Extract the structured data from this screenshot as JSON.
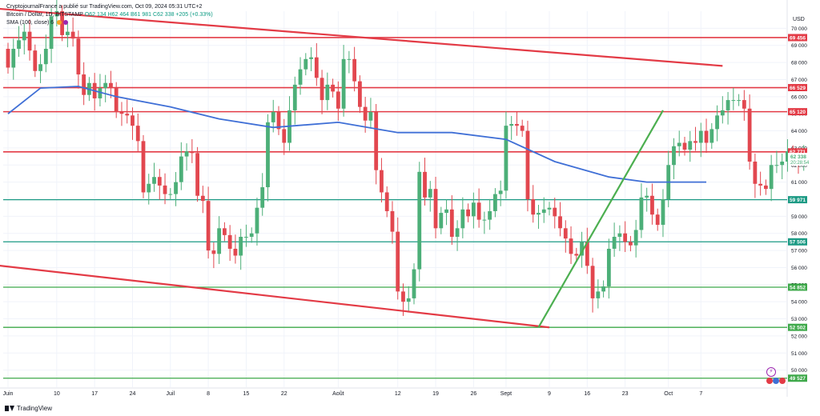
{
  "header": {
    "attribution": "CryptojournalFrance a publié sur TradingView.com, Oct 09, 2024 05:31 UTC+2",
    "symbol": "Bitcoin / Dollar, 1D, BITSTAMP",
    "ohlc": "O62 134  H62 464  B61 981  C62 338  +205 (+0.33%)",
    "indicator": "SMA (100, close)",
    "indicator_value": "6"
  },
  "footer": {
    "brand": "TradingView"
  },
  "colors": {
    "up": "#4caf78",
    "down": "#e2474f",
    "sma": "#3f6fd6",
    "resistance": "#e33b46",
    "support_teal": "#1b9a84",
    "support_green": "#3ea94a",
    "trend_green": "#4caf50",
    "trend_red": "#e33b46"
  },
  "chart_data": {
    "type": "candlestick",
    "currency": "USD",
    "ylim": [
      49000,
      71000
    ],
    "y_ticks": [
      "70 000",
      "69 000",
      "68 000",
      "67 000",
      "66 000",
      "65 000",
      "64 000",
      "63 000",
      "62 000",
      "61 000",
      "60 000",
      "59 000",
      "58 000",
      "57 000",
      "56 000",
      "55 000",
      "54 000",
      "53 000",
      "52 000",
      "51 000",
      "50 000"
    ],
    "x_ticks": [
      {
        "label": "Juin",
        "date": "2024-06-01"
      },
      {
        "label": "10",
        "date": "2024-06-10"
      },
      {
        "label": "17",
        "date": "2024-06-17"
      },
      {
        "label": "24",
        "date": "2024-06-24"
      },
      {
        "label": "Juil",
        "date": "2024-07-01"
      },
      {
        "label": "8",
        "date": "2024-07-08"
      },
      {
        "label": "15",
        "date": "2024-07-15"
      },
      {
        "label": "22",
        "date": "2024-07-22"
      },
      {
        "label": "Août",
        "date": "2024-08-01"
      },
      {
        "label": "12",
        "date": "2024-08-12"
      },
      {
        "label": "19",
        "date": "2024-08-19"
      },
      {
        "label": "26",
        "date": "2024-08-26"
      },
      {
        "label": "Sept",
        "date": "2024-09-01"
      },
      {
        "label": "9",
        "date": "2024-09-09"
      },
      {
        "label": "16",
        "date": "2024-09-16"
      },
      {
        "label": "23",
        "date": "2024-09-23"
      },
      {
        "label": "Oct",
        "date": "2024-10-01"
      },
      {
        "label": "7",
        "date": "2024-10-07"
      }
    ],
    "closes": [
      67700,
      68800,
      69300,
      69800,
      68700,
      67500,
      67900,
      68800,
      70700,
      71000,
      69600,
      69800,
      69400,
      67300,
      66100,
      66800,
      65900,
      66500,
      66800,
      66500,
      65100,
      65000,
      64900,
      64300,
      63400,
      60400,
      60900,
      61300,
      60800,
      60300,
      60300,
      61000,
      62500,
      62800,
      62700,
      60200,
      59900,
      57000,
      56800,
      58300,
      57900,
      57100,
      56700,
      57800,
      57800,
      58000,
      59500,
      60700,
      64500,
      65100,
      64100,
      63300,
      65200,
      66700,
      67600,
      68200,
      68300,
      67100,
      65800,
      66700,
      66300,
      65300,
      68200,
      68200,
      66900,
      65400,
      64600,
      65100,
      61700,
      60400,
      59300,
      58100,
      54600,
      54000,
      54200,
      55900,
      61600,
      60100,
      60600,
      58300,
      59200,
      59400,
      57800,
      58300,
      59400,
      59000,
      59800,
      58800,
      58800,
      59300,
      60300,
      60500,
      64300,
      64400,
      64300,
      64000,
      60000,
      59100,
      59200,
      59400,
      59500,
      59000,
      58300,
      57700,
      56800,
      56700,
      57500,
      56100,
      54200,
      54600,
      54900,
      57100,
      57800,
      58000,
      57500,
      57300,
      58200,
      60100,
      60200,
      59100,
      58500,
      60000,
      62000,
      63100,
      63300,
      62900,
      63400,
      63300,
      64000,
      63300,
      64100,
      64900,
      65200,
      65800,
      65800,
      65800,
      65300,
      62200,
      60900,
      60800,
      60600,
      62000,
      62000,
      62200,
      62800,
      62300,
      62200,
      62338
    ],
    "opens": [
      68800,
      67700,
      68800,
      69300,
      69800,
      68700,
      67500,
      67900,
      68800,
      70700,
      71000,
      69600,
      69800,
      69400,
      67300,
      66100,
      66800,
      65900,
      66500,
      66800,
      66500,
      65100,
      65000,
      64900,
      64300,
      63400,
      60400,
      60900,
      61300,
      60800,
      60300,
      60300,
      61000,
      62500,
      62800,
      62700,
      60200,
      59900,
      57000,
      56800,
      58300,
      57900,
      57100,
      56700,
      57800,
      57800,
      58000,
      59500,
      60700,
      64500,
      65100,
      64100,
      63300,
      65200,
      66700,
      67600,
      68200,
      68300,
      67100,
      65800,
      66700,
      66300,
      65300,
      68200,
      68200,
      66900,
      65400,
      64600,
      65100,
      61700,
      60400,
      59300,
      58100,
      54600,
      54000,
      54200,
      55900,
      61600,
      60100,
      60600,
      58300,
      59200,
      59400,
      57800,
      58300,
      59400,
      59000,
      59800,
      58800,
      58800,
      59300,
      60300,
      60500,
      64300,
      64400,
      64300,
      64000,
      60000,
      59100,
      59200,
      59400,
      59500,
      59000,
      58300,
      57700,
      56800,
      56700,
      57500,
      56100,
      54200,
      54600,
      54900,
      57100,
      57800,
      58000,
      57500,
      57300,
      58200,
      60100,
      60200,
      59100,
      58500,
      60000,
      62000,
      63100,
      63300,
      62900,
      63400,
      63300,
      64000,
      63300,
      64100,
      64900,
      65200,
      65800,
      65800,
      65800,
      65300,
      62200,
      60900,
      60800,
      60600,
      62000,
      62000,
      62200,
      62800,
      62300,
      62134
    ],
    "sma_100": [
      {
        "date": "2024-06-01",
        "value": 65000
      },
      {
        "date": "2024-06-07",
        "value": 66500
      },
      {
        "date": "2024-06-14",
        "value": 66600
      },
      {
        "date": "2024-06-21",
        "value": 66000
      },
      {
        "date": "2024-07-01",
        "value": 65400
      },
      {
        "date": "2024-07-10",
        "value": 64700
      },
      {
        "date": "2024-07-20",
        "value": 64200
      },
      {
        "date": "2024-08-01",
        "value": 64500
      },
      {
        "date": "2024-08-12",
        "value": 63900
      },
      {
        "date": "2024-08-22",
        "value": 63900
      },
      {
        "date": "2024-09-01",
        "value": 63500
      },
      {
        "date": "2024-09-10",
        "value": 62200
      },
      {
        "date": "2024-09-20",
        "value": 61300
      },
      {
        "date": "2024-09-27",
        "value": 61000
      },
      {
        "date": "2024-10-08",
        "value": 61000
      }
    ],
    "horizontal_levels": [
      {
        "value": 69456,
        "label": "69 456",
        "kind": "resistance"
      },
      {
        "value": 66529,
        "label": "66 529",
        "kind": "resistance"
      },
      {
        "value": 65120,
        "label": "65 120",
        "kind": "resistance"
      },
      {
        "value": 62771,
        "label": "62 771",
        "kind": "resistance"
      },
      {
        "value": 59971,
        "label": "59 971",
        "kind": "support_teal"
      },
      {
        "value": 57506,
        "label": "57 506",
        "kind": "support_teal"
      },
      {
        "value": 54852,
        "label": "54 852",
        "kind": "support_green"
      },
      {
        "value": 52502,
        "label": "52 502",
        "kind": "support_green"
      },
      {
        "value": 49527,
        "label": "49 527",
        "kind": "support_green"
      }
    ],
    "trendlines": [
      {
        "from": {
          "date": "2024-05-28",
          "value": 71200
        },
        "to": {
          "date": "2024-10-11",
          "value": 67800
        },
        "kind": "trend_red"
      },
      {
        "from": {
          "date": "2024-05-28",
          "value": 56200
        },
        "to": {
          "date": "2024-09-09",
          "value": 52500
        },
        "kind": "trend_red"
      },
      {
        "from": {
          "date": "2024-09-07",
          "value": 52500
        },
        "to": {
          "date": "2024-09-30",
          "value": 65200
        },
        "kind": "trend_green"
      }
    ],
    "last_price": {
      "value": 62338,
      "label": "62 338",
      "countdown": "20:28:54"
    }
  }
}
